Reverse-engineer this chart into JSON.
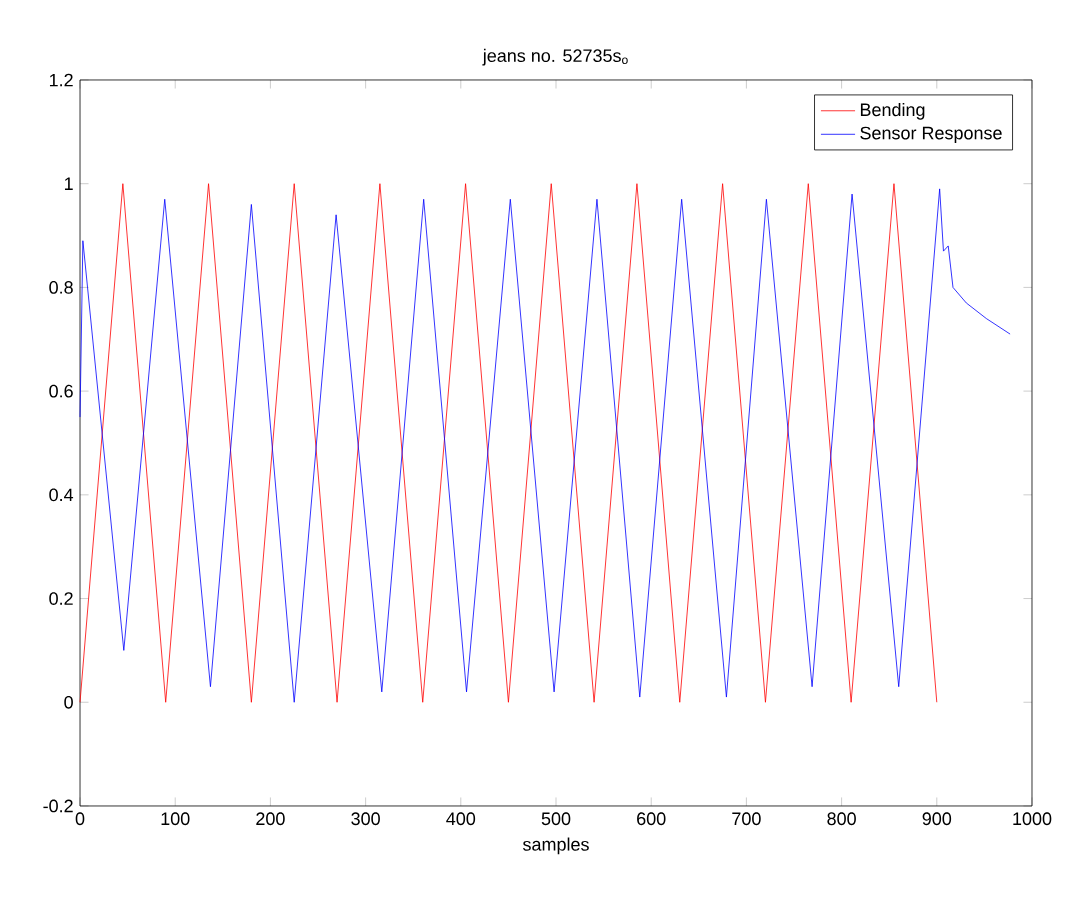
{
  "chart_data": {
    "type": "line",
    "title": "jeans no. 52735s$_{o}$",
    "xlabel": "samples",
    "xlim": [
      0,
      1000
    ],
    "xticks": [
      0,
      100,
      200,
      300,
      400,
      500,
      600,
      700,
      800,
      900,
      1000
    ],
    "ylim": [
      -0.2,
      1.2
    ],
    "yticks": [
      -0.2,
      0,
      0.2,
      0.4,
      0.6,
      0.8,
      1,
      1.2
    ],
    "grid": false,
    "legend": "top right",
    "marker": "none",
    "line_style": "solid",
    "series": [
      {
        "name": "Bending",
        "color": "#ff0000",
        "x": [
          0,
          45,
          90,
          135,
          180,
          225,
          270,
          315,
          360,
          405,
          450,
          495,
          540,
          585,
          630,
          675,
          720,
          765,
          810,
          855,
          900
        ],
        "values": [
          0,
          1,
          0,
          1,
          0,
          1,
          0,
          1,
          0,
          1,
          0,
          1,
          0,
          1,
          0,
          1,
          0,
          1,
          0,
          1,
          0
        ]
      },
      {
        "name": "Sensor Response",
        "color": "#0000ff",
        "x": [
          0,
          3,
          46,
          89,
          137,
          180,
          225,
          269,
          317,
          361,
          406,
          452,
          498,
          543,
          588,
          632,
          679,
          721,
          769,
          811,
          860,
          903,
          907,
          912,
          917,
          931,
          952,
          977
        ],
        "values": [
          0.55,
          0.89,
          0.1,
          0.97,
          0.03,
          0.96,
          0,
          0.94,
          0.02,
          0.97,
          0.02,
          0.97,
          0.02,
          0.97,
          0.01,
          0.97,
          0.01,
          0.97,
          0.03,
          0.98,
          0.03,
          0.99,
          0.87,
          0.88,
          0.8,
          0.77,
          0.74,
          0.71
        ]
      }
    ]
  }
}
